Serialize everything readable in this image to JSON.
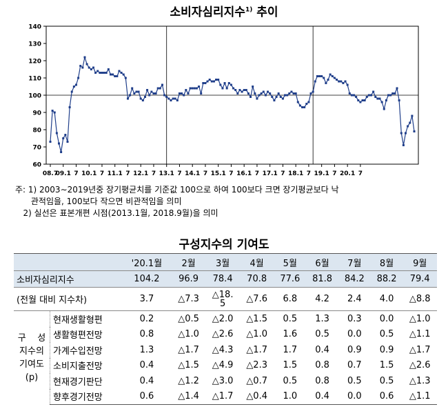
{
  "chart": {
    "title": "소비자심리지수",
    "title_sup": "1)",
    "title_suffix": " 추이"
  },
  "chart_data": {
    "type": "line",
    "ylim": [
      60,
      140
    ],
    "yticks": [
      60,
      70,
      80,
      90,
      100,
      110,
      120,
      130,
      140
    ],
    "reference_line": 100,
    "breaks": [
      "2013.1",
      "2018.9"
    ],
    "xtick_labels": [
      "08.7",
      "09.1",
      "7",
      "10.1",
      "7",
      "11.1",
      "7",
      "12.1",
      "7",
      "13.1",
      "7",
      "14.1",
      "7",
      "15.1",
      "7",
      "16.1",
      "7",
      "17.1",
      "7",
      "18.1",
      "7",
      "19.1",
      "7",
      "20.1",
      "7"
    ],
    "start": "2008.7",
    "end": "2020.9",
    "values": [
      73,
      91,
      90,
      78,
      72,
      67,
      75,
      77,
      73,
      93,
      102,
      105,
      106,
      110,
      117,
      116,
      122,
      118,
      116,
      115,
      116,
      113,
      114,
      113,
      113,
      113,
      113,
      115,
      112,
      112,
      111,
      111,
      114,
      113,
      112,
      110,
      98,
      100,
      104,
      101,
      102,
      102,
      98,
      97,
      99,
      103,
      100,
      102,
      101,
      101,
      104,
      104,
      106,
      100,
      99,
      98,
      97,
      98,
      98,
      97,
      101,
      101,
      100,
      103,
      101,
      104,
      104,
      104,
      104,
      105,
      101,
      107,
      107,
      108,
      109,
      108,
      108,
      109,
      109,
      106,
      104,
      107,
      104,
      107,
      106,
      104,
      103,
      101,
      103,
      102,
      103,
      103,
      101,
      99,
      105,
      101,
      98,
      100,
      101,
      102,
      100,
      102,
      101,
      99,
      97,
      99,
      101,
      99,
      98,
      100,
      100,
      101,
      102,
      101,
      101,
      96,
      94,
      93,
      93,
      95,
      96,
      101,
      102,
      108,
      111,
      111,
      111,
      110,
      107,
      109,
      112,
      111,
      110,
      109,
      108,
      108,
      107,
      108,
      106,
      101,
      100,
      100,
      99,
      97,
      96,
      97,
      97,
      99,
      100,
      100,
      102,
      99,
      98,
      98,
      96,
      92,
      97,
      100,
      100,
      101,
      101,
      104,
      97,
      78,
      71,
      78,
      82,
      84,
      88,
      79
    ]
  },
  "notes": {
    "note1": "주: 1) 2003∼2019년중 장기평균치를 기준값 100으로 하여 100보다 크면 장기평균보다 낙\n      관적임을, 100보다 작으면 비관적임을 의미",
    "note2": "   2) 실선은 표본개편 시점(2013.1월, 2018.9월)을 의미"
  },
  "table": {
    "title": "구성지수의 기여도",
    "headers": [
      "'20.1월",
      "2월",
      "3월",
      "4월",
      "5월",
      "6월",
      "7월",
      "8월",
      "9월"
    ],
    "csi_label": "소비자심리지수",
    "csi_values": [
      "104.2",
      "96.9",
      "78.4",
      "70.8",
      "77.6",
      "81.8",
      "84.2",
      "88.2",
      "79.4"
    ],
    "mom_label": "(전월 대비 지수차)",
    "mom_values": [
      "3.7",
      "△7.3",
      "△18.\n5",
      "△7.6",
      "6.8",
      "4.2",
      "2.4",
      "4.0",
      "△8.8"
    ],
    "group_label": "구    성\n지수의\n기여도\n(p)",
    "components": [
      {
        "name": "현재생활형편",
        "values": [
          "0.2",
          "△0.5",
          "△2.0",
          "△1.5",
          "0.5",
          "1.3",
          "0.3",
          "0.0",
          "△1.0"
        ]
      },
      {
        "name": "생활형편전망",
        "values": [
          "0.8",
          "△1.0",
          "△2.6",
          "△1.0",
          "1.6",
          "0.5",
          "0.0",
          "0.5",
          "△1.1"
        ]
      },
      {
        "name": "가계수입전망",
        "values": [
          "1.3",
          "△1.7",
          "△4.3",
          "△1.7",
          "1.7",
          "0.4",
          "0.9",
          "0.9",
          "△1.7"
        ]
      },
      {
        "name": "소비지출전망",
        "values": [
          "0.4",
          "△1.5",
          "△4.9",
          "△2.3",
          "1.5",
          "0.8",
          "0.7",
          "1.5",
          "△2.6"
        ]
      },
      {
        "name": "현재경기판단",
        "values": [
          "0.4",
          "△1.2",
          "△3.0",
          "△0.7",
          "0.5",
          "0.8",
          "0.5",
          "0.5",
          "△1.3"
        ]
      },
      {
        "name": "향후경기전망",
        "values": [
          "0.6",
          "△1.4",
          "△1.7",
          "△0.4",
          "1.0",
          "0.4",
          "0.0",
          "0.6",
          "△1.1"
        ]
      }
    ]
  }
}
